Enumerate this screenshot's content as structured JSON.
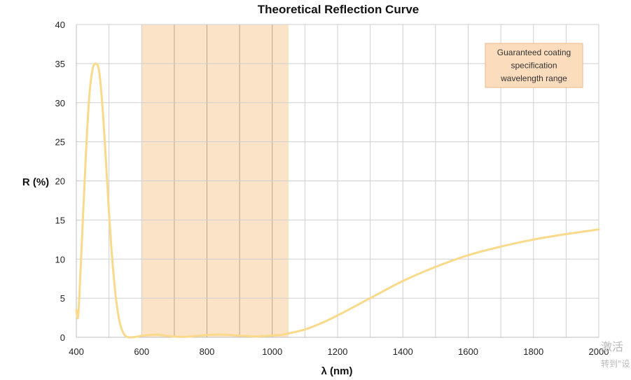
{
  "chart_data": {
    "type": "line",
    "title": "Theoretical Reflection Curve",
    "xlabel": "λ (nm)",
    "ylabel": "R (%)",
    "xlim": [
      400,
      2000
    ],
    "ylim": [
      0,
      40
    ],
    "x_ticks": [
      400,
      600,
      800,
      1000,
      1200,
      1400,
      1600,
      1800,
      2000
    ],
    "y_ticks": [
      0,
      5,
      10,
      15,
      20,
      25,
      30,
      35,
      40
    ],
    "x_grid_step": 100,
    "grid": true,
    "legend": "none",
    "highlight_range": {
      "x_start": 600,
      "x_end": 1050,
      "color": "#fbe3c8"
    },
    "annotation": {
      "lines": [
        "Guaranteed coating",
        "specification",
        "wavelength range"
      ],
      "position": "top-right",
      "fill": "#fbdcbd",
      "border": "#e8b88c"
    },
    "series": [
      {
        "color": "#f9d98a",
        "x": [
          400,
          405,
          410,
          420,
          430,
          440,
          450,
          460,
          470,
          480,
          490,
          500,
          510,
          520,
          530,
          540,
          550,
          560,
          570,
          580,
          590,
          600,
          625,
          650,
          675,
          700,
          725,
          750,
          775,
          800,
          825,
          850,
          875,
          900,
          925,
          950,
          975,
          1000,
          1025,
          1050,
          1100,
          1150,
          1200,
          1300,
          1400,
          1500,
          1600,
          1700,
          1800,
          1900,
          2000
        ],
        "y": [
          3.5,
          2.5,
          6,
          15,
          24,
          31,
          34.3,
          35,
          34,
          29.5,
          23,
          16,
          10,
          5.5,
          2.5,
          0.9,
          0.2,
          0,
          0,
          0.05,
          0.1,
          0.2,
          0.3,
          0.35,
          0.2,
          0.1,
          0.05,
          0.1,
          0.2,
          0.3,
          0.35,
          0.35,
          0.3,
          0.2,
          0.15,
          0.1,
          0.15,
          0.25,
          0.3,
          0.5,
          1,
          1.8,
          2.8,
          5,
          7.2,
          9,
          10.5,
          11.6,
          12.5,
          13.2,
          13.8
        ]
      }
    ]
  },
  "watermark": {
    "line1": "激活",
    "line2": "转到\"设"
  }
}
